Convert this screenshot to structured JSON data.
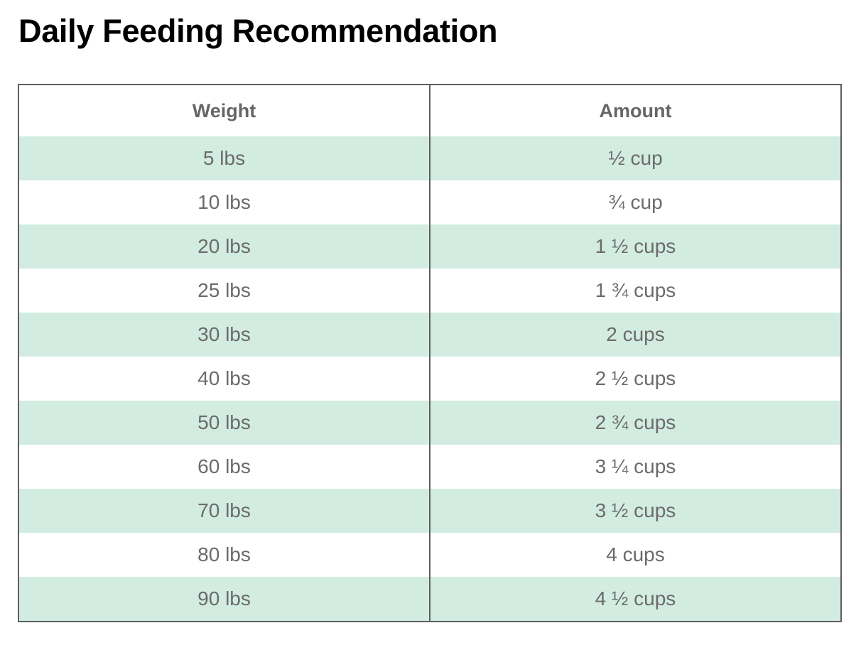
{
  "title": "Daily Feeding Recommendation",
  "colors": {
    "shaded_row": "#d2ece1",
    "border": "#5f5f5f",
    "cell_text": "#6b6b6b"
  },
  "table": {
    "headers": [
      "Weight",
      "Amount"
    ],
    "rows": [
      {
        "weight": "5 lbs",
        "amount": "½ cup"
      },
      {
        "weight": "10 lbs",
        "amount": "¾ cup"
      },
      {
        "weight": "20 lbs",
        "amount": "1 ½ cups"
      },
      {
        "weight": "25 lbs",
        "amount": "1 ¾ cups"
      },
      {
        "weight": "30 lbs",
        "amount": "2 cups"
      },
      {
        "weight": "40 lbs",
        "amount": "2 ½ cups"
      },
      {
        "weight": "50 lbs",
        "amount": "2 ¾ cups"
      },
      {
        "weight": "60 lbs",
        "amount": "3 ¼ cups"
      },
      {
        "weight": "70 lbs",
        "amount": "3 ½ cups"
      },
      {
        "weight": "80 lbs",
        "amount": "4 cups"
      },
      {
        "weight": "90 lbs",
        "amount": "4 ½ cups"
      }
    ]
  }
}
